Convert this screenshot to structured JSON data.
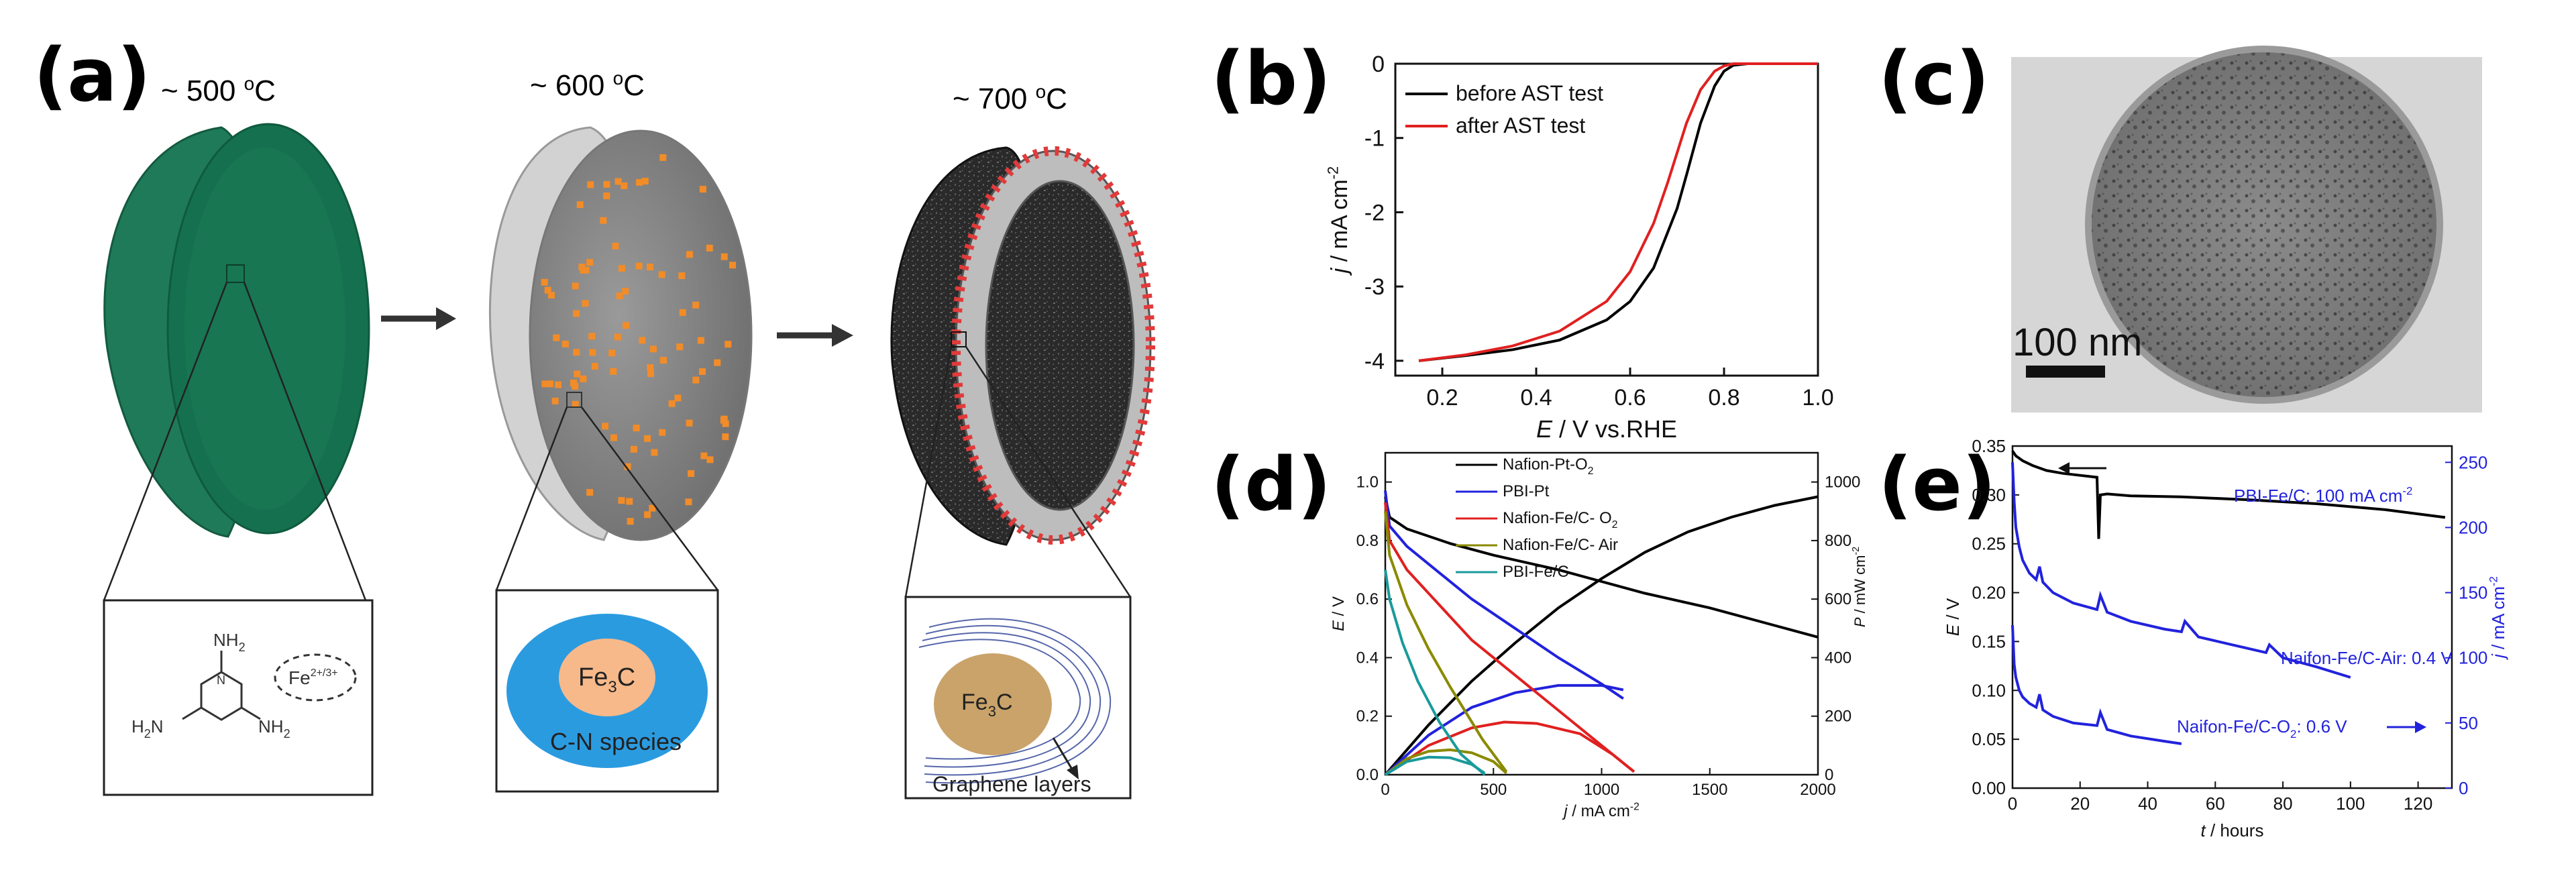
{
  "figure": {
    "panel_a": {
      "letter": "(a)",
      "stage1_temp": "~ 500 ",
      "stage2_temp": "~ 600 ",
      "stage3_temp": "~ 700 ",
      "deg_sup": "o",
      "deg_unit": "C",
      "inset1": {
        "nh2": "NH",
        "h2n": "H",
        "h2n_n": "N",
        "sub2": "2",
        "ring_n": "N",
        "fe": "Fe",
        "fe_sup": "2+/3+"
      },
      "inset2": {
        "fe3c": "Fe",
        "fe3c_sub": "3",
        "fe3c_c": "C",
        "shell_label": "C-N species"
      },
      "inset3": {
        "fe3c": "Fe",
        "fe3c_sub": "3",
        "fe3c_c": "C",
        "layers_label": "Graphene layers"
      },
      "colors": {
        "sphere_green": "#1f7a5a",
        "orange_dot": "#f28c28",
        "red_dot": "#e23a3a",
        "shell_blue": "#2b9be0",
        "core_peach": "#f7b98a",
        "core_tan": "#c9a36a"
      }
    },
    "panel_b": {
      "letter": "(b)"
    },
    "panel_c": {
      "letter": "(c)",
      "scale_label": "100 nm"
    },
    "panel_d": {
      "letter": "(d)"
    },
    "panel_e": {
      "letter": "(e)"
    }
  },
  "chart_data": [
    {
      "panel": "b",
      "type": "line",
      "title": "",
      "xlabel_italic": "E",
      "xlabel_rest": " / V vs.RHE",
      "ylabel_italic": "j",
      "ylabel_rest": " / mA cm",
      "ylabel_sup": "-2",
      "xlim": [
        0.1,
        1.0
      ],
      "ylim": [
        -4.2,
        0
      ],
      "xticks": [
        0.2,
        0.4,
        0.6,
        0.8,
        1.0
      ],
      "xtick_labels": [
        "0.2",
        "0.4",
        "0.6",
        "0.8",
        "1.0"
      ],
      "yticks": [
        0,
        -1,
        -2,
        -3,
        -4
      ],
      "ytick_labels": [
        "0",
        "-1",
        "-2",
        "-3",
        "-4"
      ],
      "legend_position": "top-right",
      "series": [
        {
          "name": "before AST test",
          "color": "#000000",
          "x": [
            0.15,
            0.25,
            0.35,
            0.45,
            0.55,
            0.6,
            0.65,
            0.7,
            0.72,
            0.75,
            0.78,
            0.8,
            0.82,
            0.85,
            0.9,
            1.0
          ],
          "y": [
            -4.0,
            -3.93,
            -3.85,
            -3.72,
            -3.45,
            -3.2,
            -2.75,
            -1.95,
            -1.5,
            -0.8,
            -0.3,
            -0.1,
            -0.02,
            0,
            0,
            0
          ]
        },
        {
          "name": "after AST test",
          "color": "#e02020",
          "x": [
            0.15,
            0.25,
            0.35,
            0.45,
            0.55,
            0.6,
            0.65,
            0.68,
            0.7,
            0.72,
            0.75,
            0.78,
            0.8,
            0.82,
            0.85,
            1.0
          ],
          "y": [
            -4.0,
            -3.92,
            -3.8,
            -3.6,
            -3.2,
            -2.8,
            -2.15,
            -1.6,
            -1.2,
            -0.8,
            -0.35,
            -0.1,
            -0.03,
            0,
            0,
            0
          ]
        }
      ]
    },
    {
      "panel": "d",
      "type": "line",
      "xlabel_italic": "j",
      "xlabel_rest": " / mA cm",
      "xlabel_sup": "-2",
      "ylabel_left_italic": "E",
      "ylabel_left_rest": " / V",
      "ylabel_right_italic": "P",
      "ylabel_right_rest": " / mW cm",
      "ylabel_right_sup": "-2",
      "xlim": [
        0,
        2000
      ],
      "ylim_left": [
        0,
        1.1
      ],
      "ylim_right": [
        0,
        1100
      ],
      "xticks": [
        0,
        500,
        1000,
        1500,
        2000
      ],
      "xtick_labels": [
        "0",
        "500",
        "1000",
        "1500",
        "2000"
      ],
      "yticks_left": [
        0.0,
        0.2,
        0.4,
        0.6,
        0.8,
        1.0
      ],
      "ytick_labels_left": [
        "0.0",
        "0.2",
        "0.4",
        "0.6",
        "0.8",
        "1.0"
      ],
      "yticks_right": [
        0,
        200,
        400,
        600,
        800,
        1000
      ],
      "ytick_labels_right": [
        "0",
        "200",
        "400",
        "600",
        "800",
        "1000"
      ],
      "legend_position": "top-center",
      "legend": [
        {
          "name": "Nafion-Pt-O",
          "sub": "2",
          "color": "#000000"
        },
        {
          "name": "PBI-Pt",
          "sub": "",
          "color": "#2222dd"
        },
        {
          "name": "Nafion-Fe/C- O",
          "sub": "2",
          "color": "#e02020"
        },
        {
          "name": "Nafion-Fe/C- Air",
          "sub": "",
          "color": "#8a8a00"
        },
        {
          "name": "PBI-Fe/C",
          "sub": "",
          "color": "#1a9a9a"
        }
      ],
      "series": [
        {
          "name": "Nafion-Pt-O2 E",
          "axis": "left",
          "color": "#000000",
          "x": [
            0,
            20,
            100,
            300,
            500,
            800,
            1000,
            1200,
            1500,
            1800,
            2000
          ],
          "y": [
            0.95,
            0.88,
            0.84,
            0.79,
            0.75,
            0.7,
            0.66,
            0.62,
            0.57,
            0.51,
            0.47
          ]
        },
        {
          "name": "Nafion-Pt-O2 P",
          "axis": "right",
          "color": "#000000",
          "x": [
            0,
            200,
            400,
            600,
            800,
            1000,
            1200,
            1400,
            1600,
            1800,
            2000
          ],
          "y": [
            0,
            170,
            320,
            450,
            570,
            670,
            760,
            830,
            880,
            920,
            950
          ]
        },
        {
          "name": "PBI-Pt E",
          "axis": "left",
          "color": "#2222dd",
          "x": [
            0,
            20,
            100,
            250,
            400,
            600,
            800,
            1000,
            1100
          ],
          "y": [
            0.97,
            0.85,
            0.78,
            0.69,
            0.6,
            0.5,
            0.4,
            0.31,
            0.26
          ]
        },
        {
          "name": "PBI-Pt P",
          "axis": "right",
          "color": "#2222dd",
          "x": [
            0,
            200,
            400,
            600,
            800,
            1000,
            1100
          ],
          "y": [
            0,
            135,
            230,
            280,
            305,
            305,
            290
          ]
        },
        {
          "name": "Nafion-Fe/C O2 E",
          "axis": "left",
          "color": "#e02020",
          "x": [
            0,
            20,
            100,
            250,
            400,
            600,
            800,
            1000,
            1150
          ],
          "y": [
            0.93,
            0.8,
            0.7,
            0.58,
            0.46,
            0.34,
            0.22,
            0.1,
            0.01
          ]
        },
        {
          "name": "Nafion-Fe/C O2 P",
          "axis": "right",
          "color": "#e02020",
          "x": [
            0,
            200,
            400,
            550,
            700,
            900,
            1050,
            1150
          ],
          "y": [
            0,
            100,
            160,
            180,
            175,
            140,
            70,
            10
          ]
        },
        {
          "name": "Nafion-Fe/C Air E",
          "axis": "left",
          "color": "#8a8a00",
          "x": [
            0,
            20,
            100,
            200,
            300,
            450,
            560
          ],
          "y": [
            0.9,
            0.75,
            0.58,
            0.43,
            0.3,
            0.12,
            0.01
          ]
        },
        {
          "name": "Nafion-Fe/C Air P",
          "axis": "right",
          "color": "#8a8a00",
          "x": [
            0,
            100,
            200,
            300,
            400,
            500,
            560
          ],
          "y": [
            0,
            55,
            80,
            85,
            75,
            45,
            5
          ]
        },
        {
          "name": "PBI-Fe/C E",
          "axis": "left",
          "color": "#1a9a9a",
          "x": [
            0,
            20,
            80,
            150,
            250,
            350,
            460
          ],
          "y": [
            0.7,
            0.6,
            0.45,
            0.32,
            0.18,
            0.07,
            0.0
          ]
        },
        {
          "name": "PBI-Fe/C P",
          "axis": "right",
          "color": "#1a9a9a",
          "x": [
            0,
            100,
            200,
            300,
            400,
            460
          ],
          "y": [
            0,
            45,
            60,
            58,
            35,
            5
          ]
        }
      ]
    },
    {
      "panel": "e",
      "type": "line",
      "xlabel_italic": "t",
      "xlabel_rest": " / hours",
      "ylabel_left_italic": "E",
      "ylabel_left_rest": " / V",
      "ylabel_right_italic": "j",
      "ylabel_right_rest": " / mA cm",
      "ylabel_right_sup": "-2",
      "xlim": [
        0,
        130
      ],
      "ylim_left": [
        0,
        0.35
      ],
      "ylim_right": [
        0,
        262.5
      ],
      "xticks": [
        0,
        20,
        40,
        60,
        80,
        100,
        120
      ],
      "xtick_labels": [
        "0",
        "20",
        "40",
        "60",
        "80",
        "100",
        "120"
      ],
      "yticks_left": [
        0.0,
        0.05,
        0.1,
        0.15,
        0.2,
        0.25,
        0.3,
        0.35
      ],
      "ytick_labels_left": [
        "0.00",
        "0.05",
        "0.10",
        "0.15",
        "0.20",
        "0.25",
        "0.30",
        "0.35"
      ],
      "yticks_right": [
        0,
        50,
        100,
        150,
        200,
        250
      ],
      "ytick_labels_right": [
        "0",
        "50",
        "100",
        "150",
        "200",
        "250"
      ],
      "annotations": [
        {
          "text": "PBI-Fe/C: 100 mA cm",
          "sup": "-2",
          "color": "#2222dd"
        },
        {
          "text": "Naifon-Fe/C-Air: 0.4 V",
          "sup": "",
          "color": "#2222dd"
        },
        {
          "text": "Naifon-Fe/C-O",
          "sub": "2",
          "rest": ": 0.6 V",
          "color": "#2222dd"
        }
      ],
      "series": [
        {
          "name": "PBI-Fe/C: 100 mA cm-2",
          "axis": "left",
          "color": "#000000",
          "x": [
            0,
            1,
            3,
            6,
            10,
            15,
            20,
            25,
            25.5,
            26,
            28,
            35,
            50,
            70,
            90,
            110,
            128
          ],
          "y": [
            0.345,
            0.34,
            0.335,
            0.33,
            0.325,
            0.322,
            0.32,
            0.318,
            0.255,
            0.3,
            0.301,
            0.299,
            0.298,
            0.295,
            0.291,
            0.285,
            0.277
          ]
        },
        {
          "name": "Naifon-Fe/C-Air: 0.4 V",
          "axis": "right",
          "color": "#2222dd",
          "x": [
            0,
            0.5,
            1,
            2,
            3,
            5,
            7,
            8,
            9,
            12,
            18,
            25,
            26,
            28,
            35,
            45,
            50,
            51,
            55,
            65,
            75,
            76,
            80,
            90,
            100
          ],
          "y": [
            250,
            220,
            200,
            185,
            175,
            165,
            160,
            170,
            158,
            150,
            142,
            137,
            148,
            135,
            128,
            122,
            120,
            128,
            116,
            110,
            104,
            110,
            100,
            93,
            85
          ]
        },
        {
          "name": "Naifon-Fe/C-O2: 0.6 V",
          "axis": "right",
          "color": "#2222dd",
          "x": [
            0,
            0.5,
            1,
            2,
            3,
            5,
            7,
            8,
            9,
            12,
            18,
            25,
            26,
            28,
            35,
            45,
            50
          ],
          "y": [
            125,
            95,
            85,
            75,
            70,
            65,
            62,
            72,
            60,
            55,
            50,
            48,
            58,
            45,
            40,
            36,
            34
          ]
        }
      ]
    }
  ]
}
